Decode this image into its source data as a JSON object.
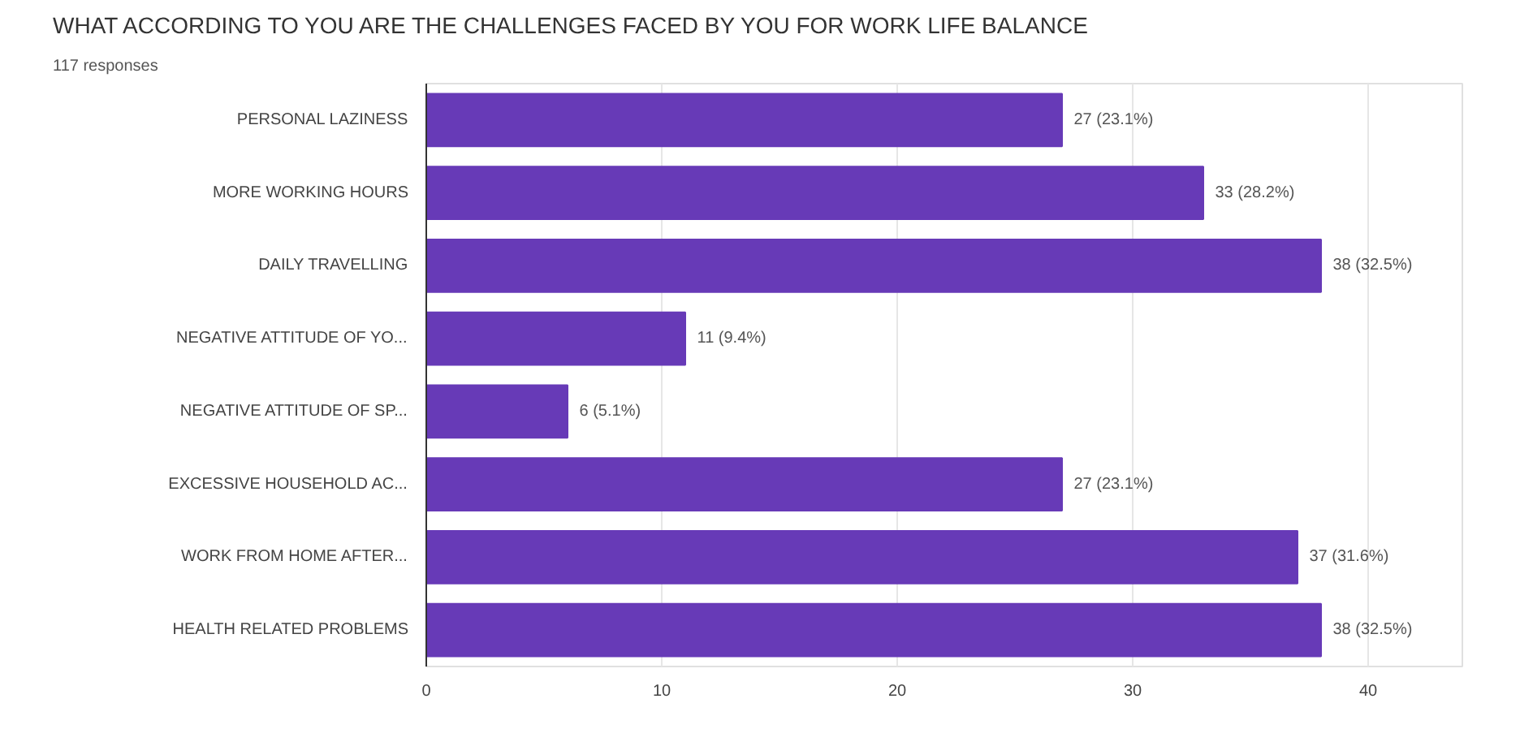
{
  "chart_data": {
    "type": "bar",
    "orientation": "horizontal",
    "title": "WHAT ACCORDING TO YOU ARE THE CHALLENGES FACED BY YOU FOR WORK LIFE BALANCE",
    "subtitle": "117 responses",
    "categories": [
      "PERSONAL LAZINESS",
      "MORE WORKING HOURS",
      "DAILY TRAVELLING",
      "NEGATIVE ATTITUDE OF YO...",
      "NEGATIVE ATTITUDE OF SP...",
      "EXCESSIVE HOUSEHOLD AC...",
      "WORK FROM HOME AFTER...",
      "HEALTH RELATED PROBLEMS"
    ],
    "values": [
      27,
      33,
      38,
      11,
      6,
      27,
      37,
      38
    ],
    "value_labels": [
      "27 (23.1%)",
      "33 (28.2%)",
      "38 (32.5%)",
      "11 (9.4%)",
      "6 (5.1%)",
      "27 (23.1%)",
      "37 (31.6%)",
      "38 (32.5%)"
    ],
    "color": "#673ab7",
    "xlim": [
      0,
      44
    ],
    "xticks": [
      0,
      10,
      20,
      30,
      40
    ],
    "grid": "x"
  }
}
